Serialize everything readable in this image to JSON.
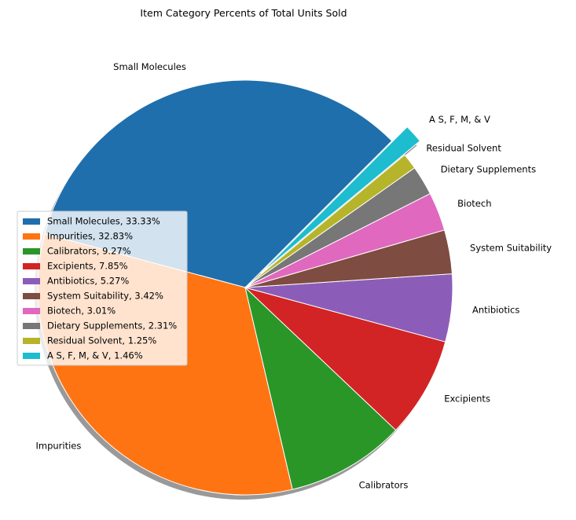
{
  "chart_data": {
    "type": "pie",
    "title": "Item Category Percents of Total Units Sold",
    "start_angle_deg": 45,
    "direction": "counterclockwise",
    "shadow": true,
    "legend_placement": "center-left",
    "slices": [
      {
        "label": "Small Molecules",
        "value": 33.33,
        "legend": "Small Molecules, 33.33%",
        "color": "#1f6fad",
        "explode": 0
      },
      {
        "label": "Impurities",
        "value": 32.83,
        "legend": "Impurities, 32.83%",
        "color": "#ff7412",
        "explode": 0
      },
      {
        "label": "Calibrators",
        "value": 9.27,
        "legend": "Calibrators, 9.27%",
        "color": "#2a9628",
        "explode": 0
      },
      {
        "label": "Excipients",
        "value": 7.85,
        "legend": "Excipients, 7.85%",
        "color": "#d22425",
        "explode": 0
      },
      {
        "label": "Antibiotics",
        "value": 5.27,
        "legend": "Antibiotics, 5.27%",
        "color": "#8b5db8",
        "explode": 0
      },
      {
        "label": "System Suitability",
        "value": 3.42,
        "legend": "System Suitability, 3.42%",
        "color": "#7f4c41",
        "explode": 0
      },
      {
        "label": "Biotech",
        "value": 3.01,
        "legend": "Biotech, 3.01%",
        "color": "#e068bf",
        "explode": 0
      },
      {
        "label": "Dietary Supplements",
        "value": 2.31,
        "legend": "Dietary Supplements, 2.31%",
        "color": "#777777",
        "explode": 0
      },
      {
        "label": "Residual Solvent",
        "value": 1.25,
        "legend": "Residual Solvent, 1.25%",
        "color": "#b6b42a",
        "explode": 0
      },
      {
        "label": "A S, F, M, & V",
        "value": 1.46,
        "legend": "A S, F, M, & V, 1.46%",
        "color": "#1dbccf",
        "explode": 0.1
      }
    ]
  }
}
